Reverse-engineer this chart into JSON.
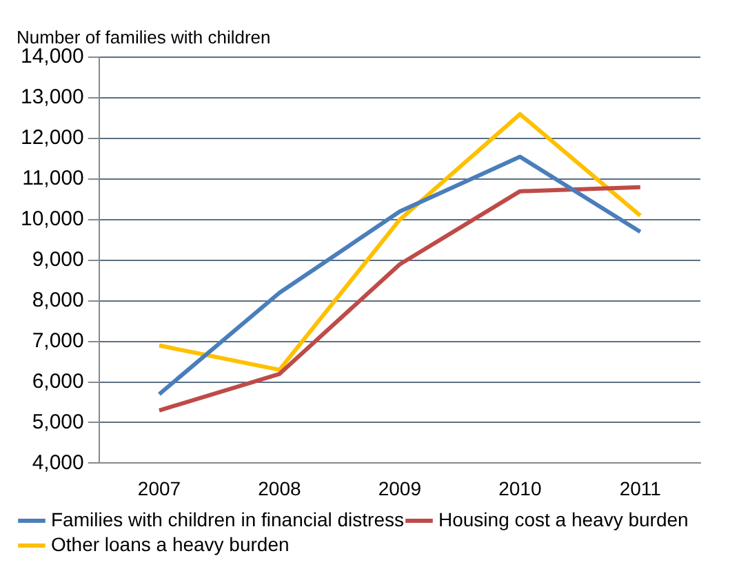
{
  "chart_data": {
    "type": "line",
    "ylabel": "Number of families with children",
    "categories": [
      "2007",
      "2008",
      "2009",
      "2010",
      "2011"
    ],
    "series": [
      {
        "name": "Families with children in financial distress",
        "color": "#4a7ebb",
        "values": [
          5700,
          8200,
          10200,
          11550,
          9700
        ]
      },
      {
        "name": "Housing cost a heavy burden",
        "color": "#be4b48",
        "values": [
          5300,
          6200,
          8900,
          10700,
          10800
        ]
      },
      {
        "name": "Other loans a heavy burden",
        "color": "#ffc000",
        "values": [
          6900,
          6300,
          10000,
          12600,
          10100
        ]
      }
    ],
    "ylim": [
      4000,
      14000
    ],
    "yticks": [
      {
        "value": 4000,
        "label": "4,000"
      },
      {
        "value": 5000,
        "label": "5,000"
      },
      {
        "value": 6000,
        "label": "6,000"
      },
      {
        "value": 7000,
        "label": "7,000"
      },
      {
        "value": 8000,
        "label": "8,000"
      },
      {
        "value": 9000,
        "label": "9,000"
      },
      {
        "value": 10000,
        "label": "10,000"
      },
      {
        "value": 11000,
        "label": "11,000"
      },
      {
        "value": 12000,
        "label": "12,000"
      },
      {
        "value": 13000,
        "label": "13,000"
      },
      {
        "value": 14000,
        "label": "14,000"
      }
    ],
    "grid": "y",
    "legend": "bottom",
    "marker": "none",
    "line_style": "solid"
  }
}
